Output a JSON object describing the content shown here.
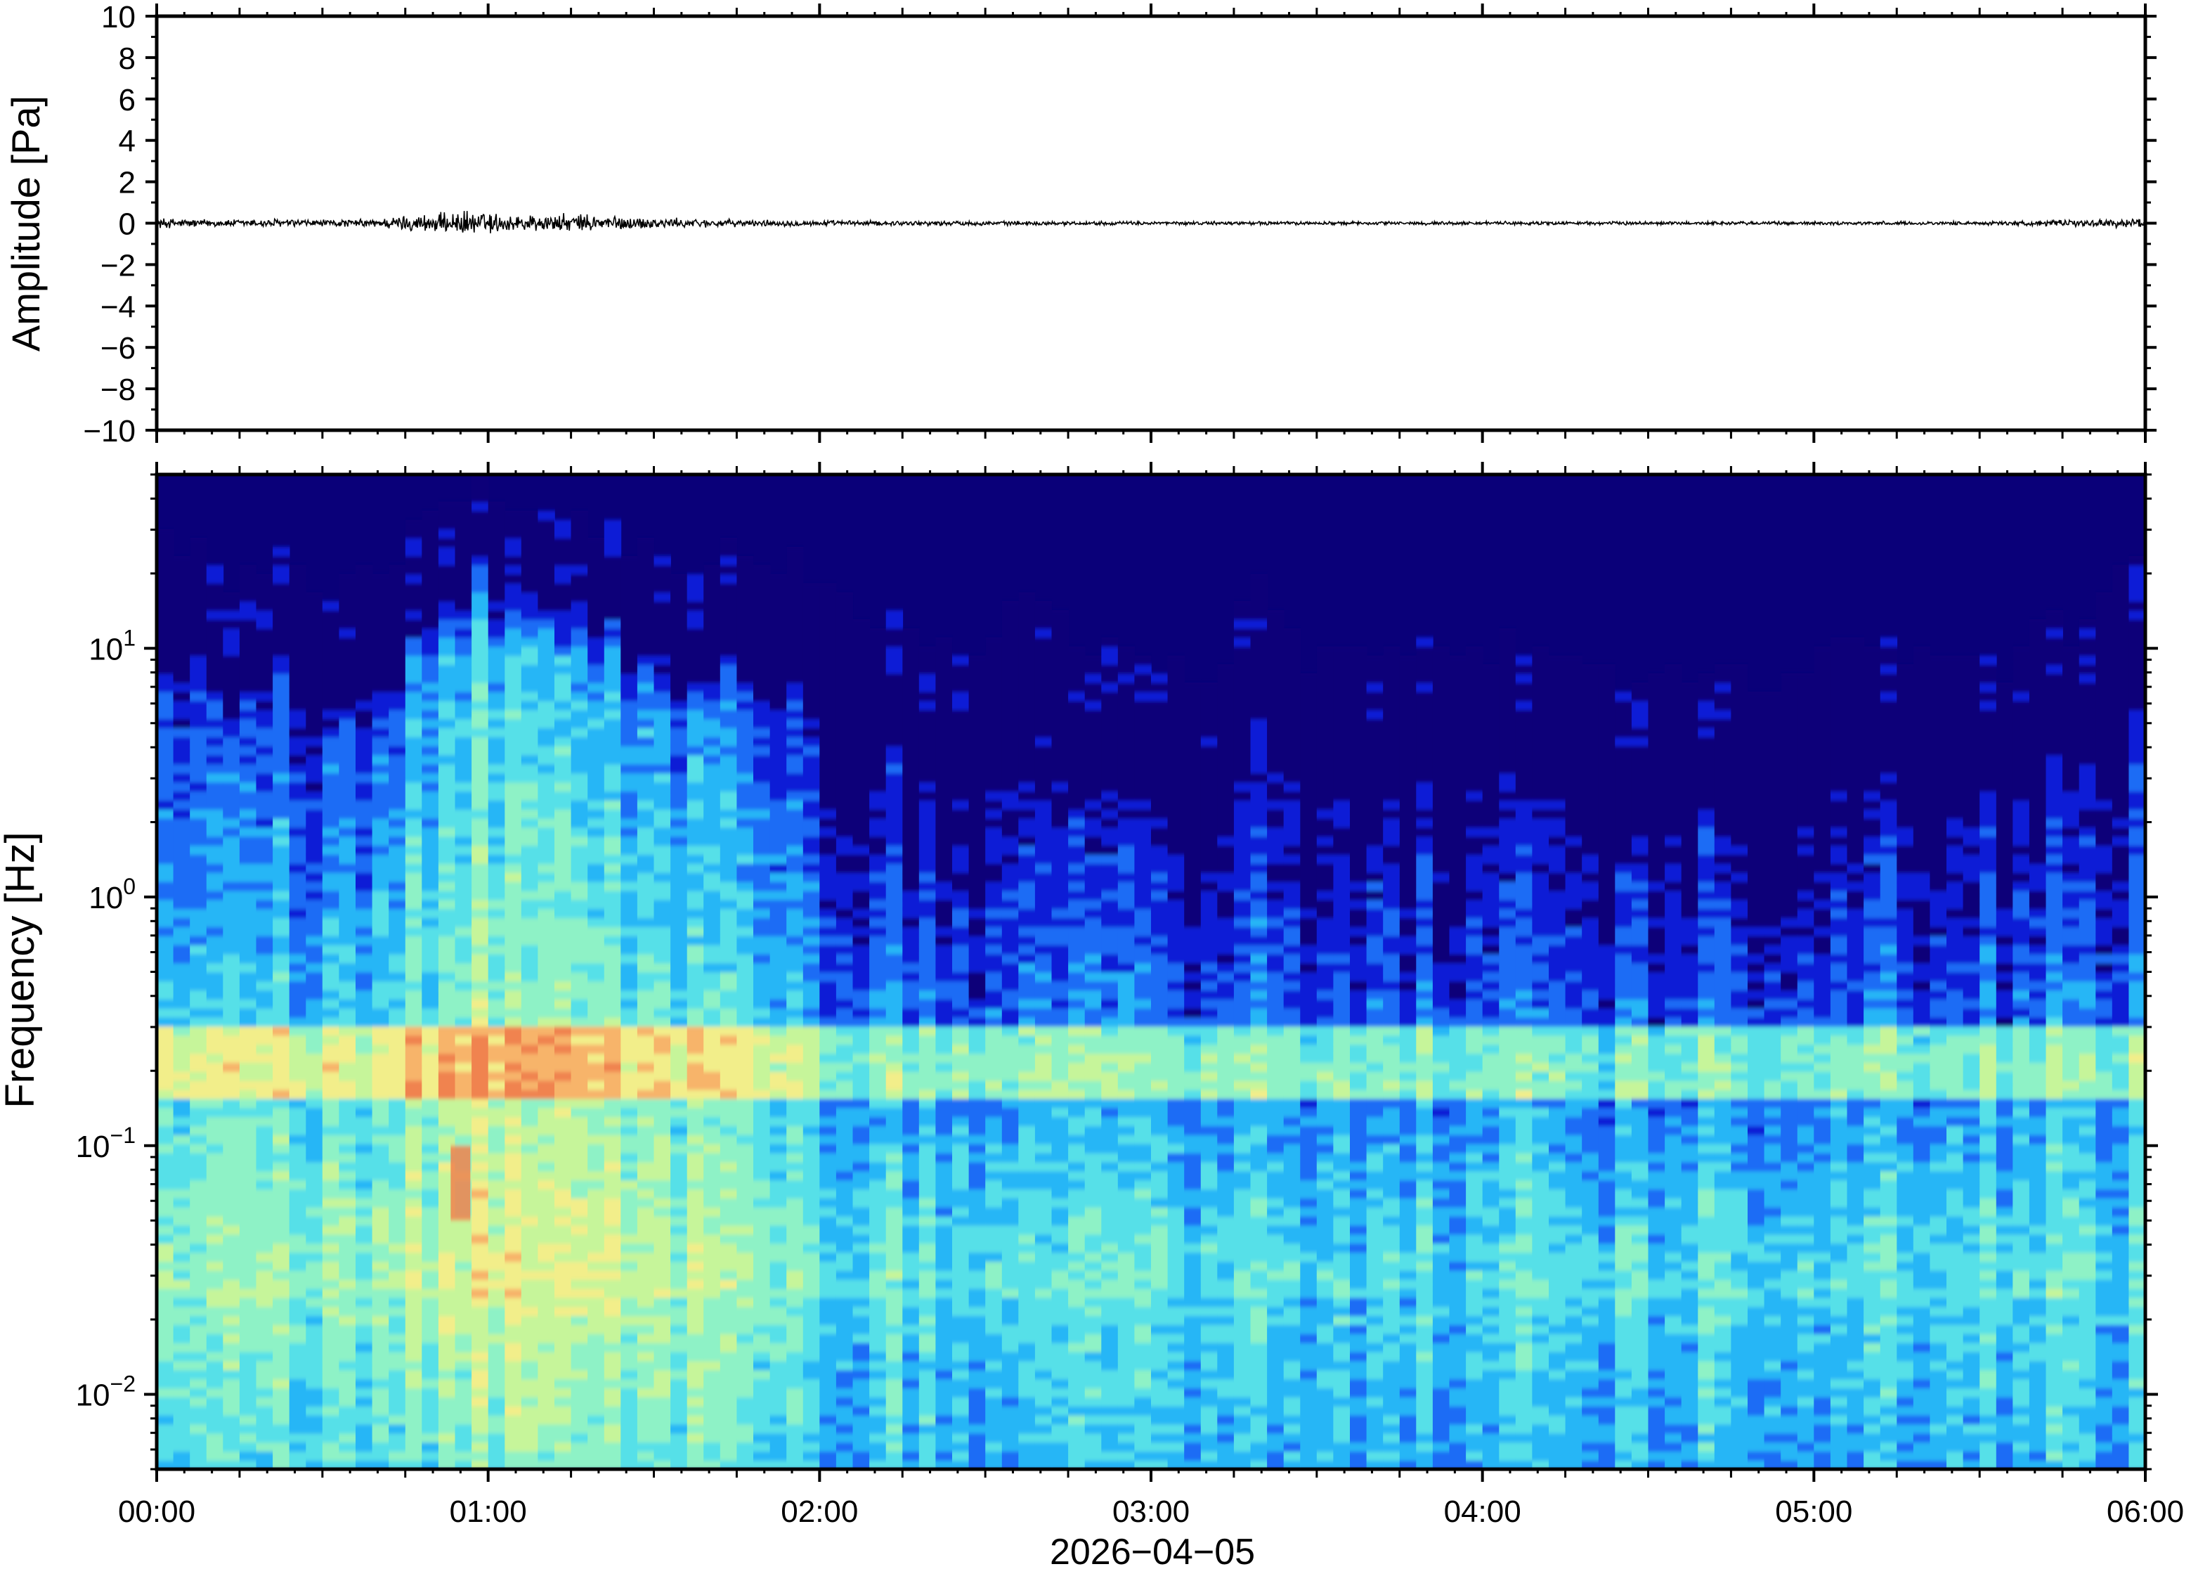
{
  "chart_data": [
    {
      "type": "line",
      "ylabel": "Amplitude [Pa]",
      "ylim": [
        -10,
        10
      ],
      "yticks": [
        10,
        8,
        6,
        4,
        2,
        0,
        -2,
        -4,
        -6,
        -8,
        -10
      ],
      "ytick_labels": [
        "10",
        "8",
        "6",
        "4",
        "2",
        "0",
        "−2",
        "−4",
        "−6",
        "−8",
        "−10"
      ],
      "xlim": [
        "00:00",
        "06:00"
      ],
      "grid": false,
      "trace_color": "#000000",
      "envelope": {
        "x_hours": [
          0,
          0.1,
          0.2,
          0.35,
          0.5,
          0.65,
          0.75,
          0.85,
          0.95,
          1.05,
          1.15,
          1.3,
          1.45,
          1.6,
          1.8,
          2.0,
          2.5,
          3.0,
          3.5,
          4.0,
          4.5,
          5.0,
          5.5,
          5.85,
          6.0
        ],
        "half_amplitude_pa": [
          0.3,
          0.25,
          0.2,
          0.25,
          0.2,
          0.22,
          0.45,
          0.55,
          0.7,
          0.5,
          0.5,
          0.5,
          0.35,
          0.25,
          0.18,
          0.15,
          0.12,
          0.1,
          0.1,
          0.1,
          0.1,
          0.1,
          0.1,
          0.2,
          0.3
        ]
      }
    },
    {
      "type": "heatmap",
      "ylabel": "Frequency [Hz]",
      "xlabel": "2026−04−05",
      "y_scale": "log",
      "ylim_hz": [
        0.005,
        50
      ],
      "yticks": [
        {
          "base": "10",
          "exp": "1",
          "value": 10
        },
        {
          "base": "10",
          "exp": "0",
          "value": 1
        },
        {
          "base": "10",
          "exp": "−1",
          "value": 0.1
        },
        {
          "base": "10",
          "exp": "−2",
          "value": 0.01
        }
      ],
      "x_tick_labels": [
        "00:00",
        "01:00",
        "02:00",
        "03:00",
        "04:00",
        "05:00",
        "06:00"
      ],
      "xlim_hours": [
        0,
        6
      ],
      "colormap": [
        "#0a0079",
        "#0a1fd6",
        "#1e6cf5",
        "#27b6f6",
        "#56e0e8",
        "#8ef2c6",
        "#c6f59a",
        "#f2ee8a",
        "#f7b46a",
        "#f0834f"
      ],
      "background_color": "#0a0079",
      "noise_top_hz": {
        "x_hours": [
          0,
          0.15,
          0.2,
          0.3,
          0.4,
          0.5,
          0.6,
          0.75,
          0.8,
          0.9,
          1.0,
          1.1,
          1.3,
          1.5,
          1.55,
          1.7,
          1.85,
          1.95,
          2.0,
          2.2,
          2.4,
          2.5,
          2.6,
          2.7,
          2.8,
          2.9,
          3.0,
          3.2,
          3.3,
          3.35,
          3.45,
          3.5,
          3.7,
          3.9,
          4.1,
          4.3,
          4.5,
          4.7,
          4.9,
          5.0,
          5.1,
          5.3,
          5.5,
          5.6,
          5.7,
          5.8,
          5.9,
          6.0
        ],
        "values": [
          15,
          14,
          8,
          12,
          14,
          9,
          12,
          13,
          20,
          25,
          26,
          20,
          18,
          14,
          9,
          15,
          13,
          12,
          10,
          7,
          6,
          6,
          9,
          8,
          5,
          6,
          5,
          4,
          9,
          10,
          5,
          5,
          6,
          5,
          6,
          5,
          4,
          5,
          4,
          5,
          6,
          5,
          5,
          5,
          8,
          5,
          12,
          15
        ]
      },
      "microseism_band_hz": [
        0.15,
        0.3
      ],
      "peak_energy": {
        "time": "00:55",
        "freq_hz": [
          0.05,
          0.1
        ]
      }
    }
  ]
}
